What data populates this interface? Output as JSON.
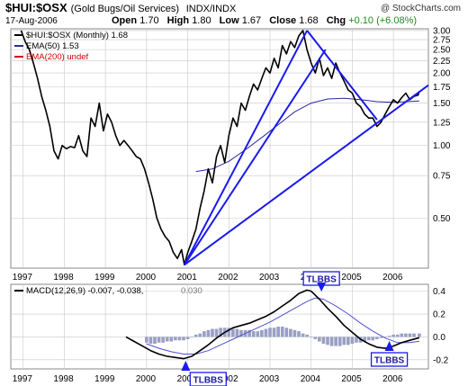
{
  "header": {
    "symbol": "$HUI:$OSX",
    "description": "(Gold Bugs/Oil Services)",
    "exchange": "INDX/INDX",
    "date": "17-Aug-2006",
    "open_label": "Open",
    "open": "1.70",
    "high_label": "High",
    "high": "1.80",
    "low_label": "Low",
    "low": "1.67",
    "close_label": "Close",
    "close": "1.68",
    "chg_label": "Chg",
    "chg": "+0.10 (+6.08%)",
    "logo": "@ StockCharts.com"
  },
  "colors": {
    "price": "#000000",
    "ema50": "#2a2aa0",
    "ema200": "#d40000",
    "trendline": "#1a1aee",
    "histogram": "#9aa0c4",
    "macd_signal": "#5050d0",
    "annotation": "#1a1aee",
    "grid": "#c8c8c8"
  },
  "chart_data": [
    {
      "type": "line",
      "scale": "log",
      "ylim": [
        0.31,
        3.05
      ],
      "x_range": [
        1996.7,
        2006.85
      ],
      "y_ticks": [
        3.0,
        2.75,
        2.5,
        2.25,
        2.0,
        1.75,
        1.5,
        1.25,
        1.0,
        0.75,
        0.5
      ],
      "y_tick_labels": [
        "3.00",
        "2.75",
        "2.50",
        "2.25",
        "2.00",
        "1.75",
        "1.50",
        "1.25",
        "1.00",
        "0.75",
        "0.50"
      ],
      "x_ticks": [
        1997,
        1998,
        1999,
        2000,
        2001,
        2002,
        2003,
        2004,
        2005,
        2006
      ],
      "x_tick_labels": [
        "1997",
        "1998",
        "1999",
        "2000",
        "2001",
        "2002",
        "2003",
        "2004",
        "2005",
        "2006"
      ],
      "legend": [
        {
          "label": "$HUI:$OSX (Monthly) 1.68",
          "color": "#000000"
        },
        {
          "label": "EMA(50) 1.53",
          "color": "#2a2aa0"
        },
        {
          "label": "EMA(200) undef",
          "color": "#d40000"
        }
      ],
      "legend_placement": "top-left",
      "grid": true,
      "series": [
        {
          "name": "$HUI:$OSX (Monthly)",
          "x": [
            1996.95,
            1997.05,
            1997.15,
            1997.25,
            1997.35,
            1997.45,
            1997.55,
            1997.65,
            1997.75,
            1997.85,
            1997.95,
            1998.05,
            1998.15,
            1998.25,
            1998.35,
            1998.45,
            1998.55,
            1998.65,
            1998.75,
            1998.85,
            1998.95,
            1999.05,
            1999.15,
            1999.25,
            1999.35,
            1999.45,
            1999.55,
            1999.65,
            1999.75,
            1999.85,
            1999.95,
            2000.05,
            2000.15,
            2000.25,
            2000.35,
            2000.45,
            2000.55,
            2000.65,
            2000.75,
            2000.85,
            2000.92,
            2001.0,
            2001.1,
            2001.2,
            2001.3,
            2001.4,
            2001.5,
            2001.6,
            2001.7,
            2001.8,
            2001.9,
            2002.0,
            2002.1,
            2002.2,
            2002.3,
            2002.4,
            2002.5,
            2002.6,
            2002.7,
            2002.8,
            2002.9,
            2003.0,
            2003.1,
            2003.2,
            2003.3,
            2003.4,
            2003.5,
            2003.6,
            2003.7,
            2003.8,
            2003.9,
            2004.0,
            2004.1,
            2004.2,
            2004.3,
            2004.4,
            2004.5,
            2004.6,
            2004.7,
            2004.8,
            2004.9,
            2005.0,
            2005.1,
            2005.2,
            2005.3,
            2005.4,
            2005.5,
            2005.6,
            2005.7,
            2005.8,
            2005.9,
            2006.0,
            2006.1,
            2006.2,
            2006.3,
            2006.4,
            2006.5,
            2006.6,
            2006.63
          ],
          "values": [
            3.0,
            2.7,
            2.5,
            2.2,
            1.9,
            1.6,
            1.4,
            1.2,
            0.95,
            0.88,
            1.0,
            0.97,
            0.99,
            0.98,
            1.1,
            0.95,
            0.9,
            1.3,
            1.2,
            1.5,
            1.15,
            1.35,
            1.25,
            1.1,
            1.0,
            1.05,
            1.0,
            0.95,
            0.9,
            0.88,
            0.8,
            0.7,
            0.6,
            0.5,
            0.45,
            0.42,
            0.4,
            0.36,
            0.34,
            0.37,
            0.32,
            0.36,
            0.4,
            0.45,
            0.55,
            0.65,
            0.8,
            0.7,
            0.9,
            1.0,
            0.85,
            1.1,
            1.3,
            1.2,
            1.5,
            1.4,
            1.6,
            1.8,
            1.7,
            1.9,
            2.1,
            2.0,
            2.3,
            2.1,
            2.6,
            2.4,
            2.7,
            2.55,
            2.85,
            3.0,
            2.5,
            2.2,
            2.0,
            2.3,
            1.95,
            2.1,
            1.9,
            2.2,
            2.0,
            1.85,
            1.7,
            1.65,
            1.5,
            1.45,
            1.35,
            1.3,
            1.3,
            1.2,
            1.25,
            1.35,
            1.45,
            1.55,
            1.5,
            1.58,
            1.65,
            1.55,
            1.6,
            1.62,
            1.68
          ]
        },
        {
          "name": "EMA(50)",
          "x": [
            2001.2,
            2001.6,
            2002.0,
            2002.4,
            2002.8,
            2003.2,
            2003.6,
            2004.0,
            2004.4,
            2004.8,
            2005.2,
            2005.6,
            2006.0,
            2006.3,
            2006.63
          ],
          "values": [
            0.78,
            0.8,
            0.86,
            0.96,
            1.08,
            1.22,
            1.38,
            1.5,
            1.56,
            1.57,
            1.55,
            1.52,
            1.51,
            1.52,
            1.53
          ]
        }
      ],
      "trendlines": [
        {
          "x": [
            2000.92,
            2003.9
          ],
          "y": [
            0.32,
            3.0
          ]
        },
        {
          "x": [
            2000.92,
            2004.35
          ],
          "y": [
            0.32,
            2.5
          ]
        },
        {
          "x": [
            2000.92,
            2006.85
          ],
          "y": [
            0.32,
            1.78
          ]
        },
        {
          "x": [
            2003.9,
            2005.6
          ],
          "y": [
            3.0,
            1.28
          ]
        }
      ]
    },
    {
      "type": "line",
      "title": "MACD(12,26,9) -0.007, -0.038, 0.030",
      "legend": [
        {
          "label": "MACD(12,26,9) -0.007, -0.038,",
          "color": "#000000"
        },
        {
          "label": "0.030",
          "color": "#9aa0c4"
        }
      ],
      "ylim": [
        -0.28,
        0.46
      ],
      "x_range": [
        1996.7,
        2006.85
      ],
      "y_ticks": [
        0.4,
        0.2,
        0.0,
        -0.2
      ],
      "y_tick_labels": [
        "0.4",
        "0.2",
        "0.0",
        "-0.2"
      ],
      "x_ticks": [
        1997,
        1998,
        1999,
        2000,
        2001,
        2002,
        2003,
        2004,
        2005,
        2006
      ],
      "x_tick_labels": [
        "1997",
        "1998",
        "1999",
        "2000",
        "2001",
        "2002",
        "2003",
        "2004",
        "2005",
        "2006"
      ],
      "grid": true,
      "series": [
        {
          "name": "MACD",
          "x": [
            1999.5,
            1999.7,
            1999.9,
            2000.1,
            2000.3,
            2000.5,
            2000.7,
            2000.9,
            2001.1,
            2001.3,
            2001.5,
            2001.7,
            2001.9,
            2002.1,
            2002.3,
            2002.5,
            2002.7,
            2002.9,
            2003.1,
            2003.3,
            2003.5,
            2003.7,
            2003.9,
            2004.0,
            2004.2,
            2004.4,
            2004.6,
            2004.8,
            2005.0,
            2005.2,
            2005.4,
            2005.6,
            2005.8,
            2006.0,
            2006.2,
            2006.4,
            2006.63
          ],
          "values": [
            0.0,
            -0.04,
            -0.08,
            -0.12,
            -0.15,
            -0.17,
            -0.18,
            -0.19,
            -0.17,
            -0.12,
            -0.07,
            -0.01,
            0.04,
            0.08,
            0.1,
            0.12,
            0.15,
            0.18,
            0.22,
            0.27,
            0.32,
            0.38,
            0.41,
            0.4,
            0.33,
            0.25,
            0.18,
            0.1,
            0.04,
            -0.02,
            -0.06,
            -0.09,
            -0.1,
            -0.08,
            -0.05,
            -0.03,
            -0.007
          ]
        },
        {
          "name": "Signal",
          "x": [
            2000.0,
            2000.3,
            2000.6,
            2000.9,
            2001.2,
            2001.5,
            2001.8,
            2002.1,
            2002.4,
            2002.7,
            2003.0,
            2003.3,
            2003.6,
            2003.9,
            2004.1,
            2004.3,
            2004.6,
            2004.9,
            2005.2,
            2005.5,
            2005.8,
            2006.1,
            2006.4,
            2006.63
          ],
          "values": [
            -0.06,
            -0.1,
            -0.13,
            -0.15,
            -0.15,
            -0.12,
            -0.07,
            -0.02,
            0.03,
            0.08,
            0.13,
            0.19,
            0.25,
            0.31,
            0.34,
            0.33,
            0.27,
            0.2,
            0.12,
            0.05,
            -0.01,
            -0.05,
            -0.05,
            -0.038
          ]
        },
        {
          "name": "Histogram",
          "x": [
            2000.0,
            2000.1,
            2000.2,
            2000.3,
            2000.4,
            2000.5,
            2000.6,
            2000.7,
            2000.8,
            2000.9,
            2001.0,
            2001.1,
            2001.2,
            2001.3,
            2001.4,
            2001.5,
            2001.6,
            2001.7,
            2001.8,
            2001.9,
            2002.0,
            2002.1,
            2002.2,
            2002.3,
            2002.4,
            2002.5,
            2002.6,
            2002.7,
            2002.8,
            2002.9,
            2003.0,
            2003.1,
            2003.2,
            2003.3,
            2003.4,
            2003.5,
            2003.6,
            2003.7,
            2003.8,
            2003.9,
            2004.0,
            2004.1,
            2004.2,
            2004.3,
            2004.4,
            2004.5,
            2004.6,
            2004.7,
            2004.8,
            2004.9,
            2005.0,
            2005.1,
            2005.2,
            2005.3,
            2005.4,
            2005.5,
            2005.6,
            2005.7,
            2005.8,
            2005.9,
            2006.0,
            2006.1,
            2006.2,
            2006.3,
            2006.4,
            2006.5,
            2006.63
          ],
          "values": [
            -0.05,
            -0.06,
            -0.06,
            -0.05,
            -0.05,
            -0.04,
            -0.04,
            -0.03,
            -0.03,
            -0.03,
            -0.02,
            0.0,
            0.02,
            0.03,
            0.05,
            0.06,
            0.07,
            0.07,
            0.08,
            0.08,
            0.08,
            0.07,
            0.07,
            0.06,
            0.06,
            0.06,
            0.05,
            0.05,
            0.06,
            0.07,
            0.08,
            0.08,
            0.09,
            0.09,
            0.08,
            0.07,
            0.06,
            0.05,
            0.03,
            0.02,
            0.0,
            -0.02,
            -0.04,
            -0.06,
            -0.07,
            -0.08,
            -0.08,
            -0.08,
            -0.07,
            -0.07,
            -0.06,
            -0.05,
            -0.05,
            -0.04,
            -0.03,
            -0.03,
            -0.02,
            -0.01,
            0.0,
            0.01,
            0.02,
            0.02,
            0.03,
            0.03,
            0.03,
            0.03,
            0.03
          ]
        }
      ],
      "annotations": [
        {
          "label": "TLBBS",
          "x": 2004.25,
          "arrow": "down"
        },
        {
          "label": "TLBBS",
          "x": 2000.95,
          "arrow": "up"
        },
        {
          "label": "TLBBS",
          "x": 2005.9,
          "arrow": "up"
        }
      ]
    }
  ]
}
